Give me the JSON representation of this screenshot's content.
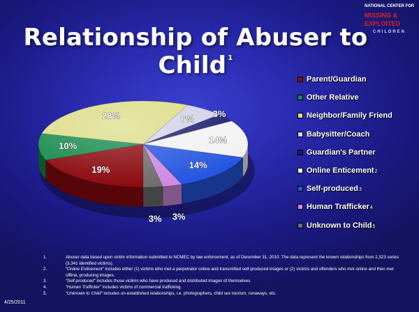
{
  "title": "Relationship of Abuser to Child",
  "title_sup": "1",
  "logo": {
    "line1": "NATIONAL CENTER FOR",
    "line2": "MISSING &",
    "line3": "EXPLOITED",
    "line4": "CHILDREN"
  },
  "date": "4/25/2011",
  "chart_data": {
    "type": "pie",
    "title": "Relationship of Abuser to Child",
    "slices": [
      {
        "name": "Parent/Guardian",
        "note": "",
        "value": 19,
        "label": "19%",
        "color": "#8b0a0f"
      },
      {
        "name": "Other Relative",
        "note": "",
        "value": 10,
        "label": "10%",
        "color": "#138a4a"
      },
      {
        "name": "Neighbor/Family Friend",
        "note": "",
        "value": 28,
        "label": "28%",
        "color": "#dcdc86"
      },
      {
        "name": "Babysitter/Coach",
        "note": "",
        "value": 6,
        "label": "6%",
        "color": "#d2d2ea"
      },
      {
        "name": "Guardian's Partner",
        "note": "",
        "value": 3,
        "label": "3%",
        "color": "#1c1c6e"
      },
      {
        "name": "Online Enticement",
        "note": "2",
        "value": 14,
        "label": "14%",
        "color": "#f2f2f2"
      },
      {
        "name": "Self-produced",
        "note": "3",
        "value": 14,
        "label": "14%",
        "color": "#2556e0"
      },
      {
        "name": "Human Trafficker",
        "note": "4",
        "value": 3,
        "label": "3%",
        "color": "#cf8ae0"
      },
      {
        "name": "Unknown to Child",
        "note": "5",
        "value": 3,
        "label": "3%",
        "color": "#6e6e6e"
      }
    ],
    "legend_position": "right"
  },
  "notes": [
    {
      "num": "1.",
      "lead": "",
      "text": "Abuser data based upon victim information submitted to NCMEC by law enforcement, as of December 31, 2010. The data represent the known relationships from 2,323 series (3,341 identified victims)."
    },
    {
      "num": "2.",
      "lead": "“Online Enticement”",
      "text": " includes either (1) victims who met a perpetrator online and transmitted self-produced images or (2) victims and offenders who met online and then met offline, producing images."
    },
    {
      "num": "3.",
      "lead": "“Self-produced”",
      "text": " includes those victims who have produced and distributed images of themselves."
    },
    {
      "num": "4.",
      "lead": "“Human Trafficker”",
      "text": " includes victims of commercial trafficking."
    },
    {
      "num": "5.",
      "lead": "“Unknown to Child”",
      "text": " includes un-established relationships, i.e. photographers, child sex tourism, runaways, etc."
    }
  ]
}
